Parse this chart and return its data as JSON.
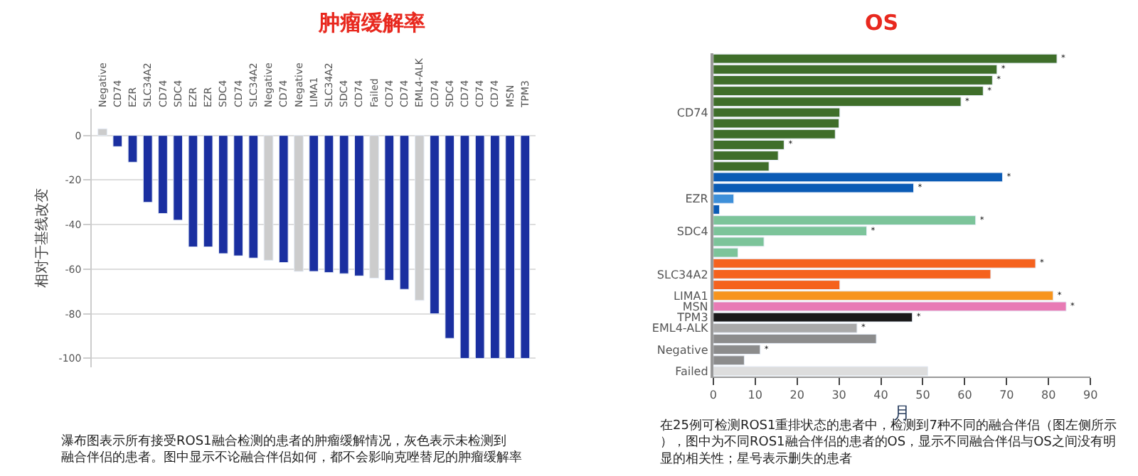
{
  "chart_data": [
    {
      "type": "bar",
      "title": "肿瘤缓解率",
      "ylabel": "相对于基线改变",
      "categories": [
        "Negative",
        "CD74",
        "EZR",
        "SLC34A2",
        "CD74",
        "SDC4",
        "EZR",
        "EZR",
        "SDC4",
        "CD74",
        "SLC34A2",
        "Negative",
        "CD74",
        "Negative",
        "LIMA1",
        "SLC34A2",
        "SDC4",
        "CD74",
        "Failed",
        "CD74",
        "CD74",
        "EML4-ALK",
        "CD74",
        "SDC4",
        "CD74",
        "CD74",
        "CD74",
        "MSN",
        "TPM3"
      ],
      "values": [
        3,
        -5,
        -12,
        -30,
        -35,
        -38,
        -50,
        -50,
        -53,
        -54,
        -55,
        -56,
        -57,
        -61,
        -61,
        -61.5,
        -62,
        -63,
        -64,
        -65,
        -69,
        -74,
        -80,
        -91,
        -100,
        -100,
        -100,
        -100,
        -100
      ],
      "colors": [
        "#cccccc",
        "#1a2fa0",
        "#1a2fa0",
        "#1a2fa0",
        "#1a2fa0",
        "#1a2fa0",
        "#1a2fa0",
        "#1a2fa0",
        "#1a2fa0",
        "#1a2fa0",
        "#1a2fa0",
        "#cccccc",
        "#1a2fa0",
        "#cccccc",
        "#1a2fa0",
        "#1a2fa0",
        "#1a2fa0",
        "#1a2fa0",
        "#cccccc",
        "#1a2fa0",
        "#1a2fa0",
        "#cccccc",
        "#1a2fa0",
        "#1a2fa0",
        "#1a2fa0",
        "#1a2fa0",
        "#1a2fa0",
        "#1a2fa0",
        "#1a2fa0"
      ],
      "ylim": [
        -104,
        12
      ],
      "yticks": [
        0,
        -20,
        -40,
        -60,
        -80,
        -100
      ],
      "grid": "y",
      "annotations": [
        "瀑布图表示所有接受ROS1融合检测的患者的肿瘤缓解情况，灰色表示未检测到融合伴侣的患者。图中显示不论融合伴侣如何，都不会影响克唑替尼的肿瘤缓解率"
      ]
    },
    {
      "type": "bar",
      "orientation": "horizontal",
      "title": "OS",
      "xlabel": "月",
      "categories": [
        null,
        null,
        null,
        null,
        null,
        "CD74",
        null,
        null,
        null,
        null,
        null,
        null,
        null,
        "EZR",
        null,
        null,
        "SDC4",
        null,
        null,
        null,
        "SLC34A2",
        null,
        "LIMA1",
        "MSN",
        "TPM3",
        "EML4-ALK",
        null,
        "Negative",
        null,
        "Failed"
      ],
      "values": [
        82,
        67.7,
        66.6,
        64.4,
        59.1,
        30.2,
        30,
        29.1,
        16.9,
        15.5,
        13.3,
        69,
        47.8,
        4.9,
        1.5,
        62.6,
        36.6,
        12.1,
        5.9,
        76.9,
        66.2,
        30.2,
        81.1,
        84.2,
        47.5,
        34.3,
        38.9,
        11.2,
        7.4,
        51.2
      ],
      "colors": [
        "#3f6e2a",
        "#3f6e2a",
        "#3f6e2a",
        "#3f6e2a",
        "#3f6e2a",
        "#3f6e2a",
        "#3f6e2a",
        "#3f6e2a",
        "#3f6e2a",
        "#3f6e2a",
        "#3f6e2a",
        "#0b5bb5",
        "#0b5bb5",
        "#3d8fd9",
        "#0b5bb5",
        "#7cc49a",
        "#7cc49a",
        "#7cc49a",
        "#7cc49a",
        "#f5621e",
        "#f5621e",
        "#f5621e",
        "#f7941d",
        "#e87bb5",
        "#1a1a1a",
        "#a9a9a9",
        "#8c8c8c",
        "#8c8c8c",
        "#8c8c8c",
        "#dddddd"
      ],
      "value_labels": [
        "*",
        "*",
        "*",
        "*",
        "*",
        null,
        null,
        null,
        "*",
        null,
        null,
        "*",
        "*",
        null,
        null,
        "*",
        "*",
        null,
        null,
        "*",
        null,
        null,
        "*",
        "*",
        "*",
        "*",
        null,
        "*",
        null,
        null
      ],
      "xlim": [
        0,
        90
      ],
      "xticks": [
        0,
        10,
        20,
        30,
        40,
        50,
        60,
        70,
        80,
        90
      ],
      "grid": false,
      "annotations": [
        "在25例可检测ROS1重排状态的患者中，检测到7种不同的融合伴侣（图左侧所示），图中为不同ROS1融合伴侣的患者的OS，显示不同融合伴侣与OS之间没有明显的相关性；星号表示删失的患者"
      ]
    }
  ]
}
